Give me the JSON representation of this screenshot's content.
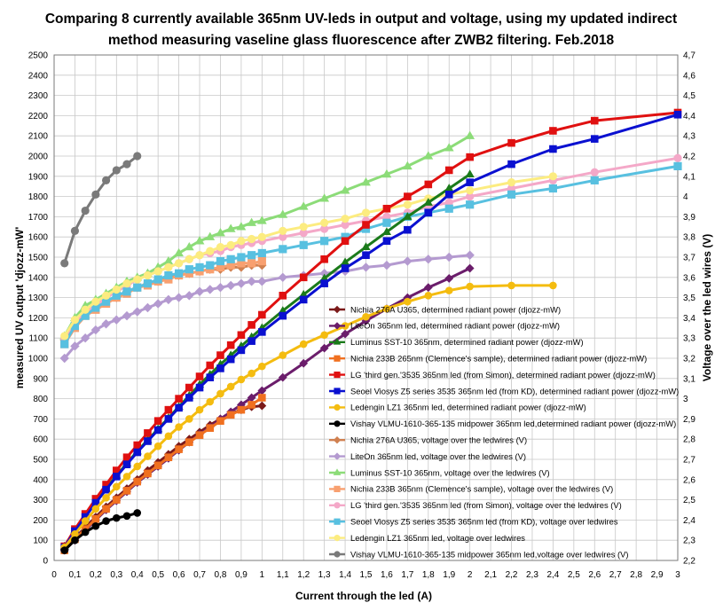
{
  "chart_data": {
    "type": "line",
    "title_lines": [
      "Comparing 8 currently available 365nm UV-leds in output and voltage, using my updated indirect",
      "method measuring vaseline glass fluorescence after ZWB2 filtering. Feb.2018"
    ],
    "xlabel": "Current through the led (A)",
    "ylabel": "measured UV output 'djozz-mW'",
    "y2label": "Voltage over the led wires (V)",
    "xlim": [
      0,
      3
    ],
    "ylim": [
      0,
      2500
    ],
    "y2lim": [
      2.2,
      4.7
    ],
    "x_ticks": [
      "0",
      "0,1",
      "0,2",
      "0,3",
      "0,4",
      "0,5",
      "0,6",
      "0,7",
      "0,8",
      "0,9",
      "1",
      "1,1",
      "1,2",
      "1,3",
      "1,4",
      "1,5",
      "1,6",
      "1,7",
      "1,8",
      "1,9",
      "2",
      "2,1",
      "2,2",
      "2,3",
      "2,4",
      "2,5",
      "2,6",
      "2,7",
      "2,8",
      "2,9",
      "3"
    ],
    "y_ticks": [
      "0",
      "100",
      "200",
      "300",
      "400",
      "500",
      "600",
      "700",
      "800",
      "900",
      "1000",
      "1100",
      "1200",
      "1300",
      "1400",
      "1500",
      "1600",
      "1700",
      "1800",
      "1900",
      "2000",
      "2100",
      "2200",
      "2300",
      "2400",
      "2500"
    ],
    "y2_ticks": [
      "2,2",
      "2,3",
      "2,4",
      "2,5",
      "2,6",
      "2,7",
      "2,8",
      "2,9",
      "3",
      "3,1",
      "3,2",
      "3,3",
      "3,4",
      "3,5",
      "3,6",
      "3,7",
      "3,8",
      "3,9",
      "4",
      "4,1",
      "4,2",
      "4,3",
      "4,4",
      "4,5",
      "4,6",
      "4,7"
    ],
    "grid": true,
    "legend_position": "bottom-right inside plot",
    "series": [
      {
        "name": "Nichia 276A U365,  determined radiant power (djozz-mW)",
        "axis": "left",
        "color": "#7b1a1a",
        "marker": "diamond",
        "x": [
          0.05,
          0.1,
          0.15,
          0.2,
          0.25,
          0.3,
          0.35,
          0.4,
          0.45,
          0.5,
          0.55,
          0.6,
          0.65,
          0.7,
          0.75,
          0.8,
          0.85,
          0.9,
          0.95,
          1.0
        ],
        "y": [
          55,
          110,
          165,
          215,
          265,
          310,
          355,
          400,
          445,
          485,
          525,
          565,
          600,
          635,
          670,
          700,
          725,
          745,
          760,
          765
        ]
      },
      {
        "name": "LiteOn 365nm led, determined radiant power (djozz-mW)",
        "axis": "left",
        "color": "#6b1d6b",
        "marker": "diamond",
        "x": [
          0.05,
          0.1,
          0.15,
          0.2,
          0.25,
          0.3,
          0.35,
          0.4,
          0.45,
          0.5,
          0.55,
          0.6,
          0.65,
          0.7,
          0.75,
          0.8,
          0.85,
          0.9,
          0.95,
          1.0,
          1.1,
          1.2,
          1.3,
          1.4,
          1.5,
          1.6,
          1.7,
          1.8,
          1.9,
          2.0
        ],
        "y": [
          50,
          100,
          150,
          200,
          250,
          295,
          340,
          385,
          425,
          465,
          505,
          545,
          585,
          625,
          660,
          700,
          735,
          770,
          805,
          840,
          905,
          975,
          1050,
          1120,
          1185,
          1245,
          1300,
          1350,
          1395,
          1445
        ]
      },
      {
        "name": "Luminus SST-10 365nm, determined radiant power (djozz-mW)",
        "axis": "left",
        "color": "#1a7a1a",
        "marker": "triangle",
        "x": [
          0.05,
          0.1,
          0.15,
          0.2,
          0.25,
          0.3,
          0.35,
          0.4,
          0.45,
          0.5,
          0.55,
          0.6,
          0.65,
          0.7,
          0.75,
          0.8,
          0.85,
          0.9,
          0.95,
          1.0,
          1.1,
          1.2,
          1.3,
          1.4,
          1.5,
          1.6,
          1.7,
          1.8,
          1.9,
          2.0
        ],
        "y": [
          70,
          150,
          220,
          290,
          355,
          420,
          480,
          540,
          595,
          650,
          705,
          760,
          815,
          870,
          920,
          970,
          1015,
          1060,
          1105,
          1150,
          1235,
          1315,
          1395,
          1475,
          1550,
          1625,
          1700,
          1770,
          1840,
          1910
        ]
      },
      {
        "name": "Nichia 233B 265nm (Clemence's sample), determined radiant power (djozz-mW)",
        "axis": "left",
        "color": "#f07020",
        "marker": "square",
        "x": [
          0.05,
          0.1,
          0.15,
          0.2,
          0.25,
          0.3,
          0.35,
          0.4,
          0.45,
          0.5,
          0.55,
          0.6,
          0.65,
          0.7,
          0.75,
          0.8,
          0.85,
          0.9,
          0.95,
          1.0
        ],
        "y": [
          50,
          105,
          155,
          205,
          255,
          300,
          345,
          390,
          430,
          470,
          510,
          550,
          585,
          620,
          655,
          690,
          720,
          745,
          770,
          805
        ]
      },
      {
        "name": "LG 'third gen.'3535 365nm led (from Simon), determined radiant power (djozz-mW)",
        "axis": "left",
        "color": "#e01010",
        "marker": "square",
        "x": [
          0.05,
          0.1,
          0.15,
          0.2,
          0.25,
          0.3,
          0.35,
          0.4,
          0.45,
          0.5,
          0.55,
          0.6,
          0.65,
          0.7,
          0.75,
          0.8,
          0.85,
          0.9,
          0.95,
          1.0,
          1.1,
          1.2,
          1.3,
          1.4,
          1.5,
          1.6,
          1.7,
          1.8,
          1.9,
          2.0,
          2.2,
          2.4,
          2.6,
          3.0
        ],
        "y": [
          70,
          155,
          230,
          305,
          375,
          445,
          510,
          570,
          630,
          690,
          745,
          800,
          855,
          910,
          965,
          1015,
          1065,
          1115,
          1165,
          1215,
          1310,
          1400,
          1490,
          1580,
          1660,
          1740,
          1800,
          1860,
          1930,
          1995,
          2065,
          2125,
          2175,
          2215
        ]
      },
      {
        "name": "Seoel Viosys Z5 series 3535 365nm led (from KD), determined radiant power (djozz-mW)",
        "axis": "left",
        "color": "#0a10d0",
        "marker": "square",
        "x": [
          0.05,
          0.1,
          0.15,
          0.2,
          0.25,
          0.3,
          0.35,
          0.4,
          0.45,
          0.5,
          0.55,
          0.6,
          0.65,
          0.7,
          0.75,
          0.8,
          0.85,
          0.9,
          0.95,
          1.0,
          1.1,
          1.2,
          1.3,
          1.4,
          1.5,
          1.6,
          1.7,
          1.8,
          1.9,
          2.0,
          2.2,
          2.4,
          2.6,
          3.0
        ],
        "y": [
          65,
          145,
          215,
          285,
          350,
          415,
          475,
          535,
          590,
          645,
          700,
          755,
          805,
          855,
          905,
          950,
          995,
          1040,
          1085,
          1130,
          1210,
          1290,
          1370,
          1445,
          1510,
          1580,
          1635,
          1720,
          1810,
          1870,
          1960,
          2035,
          2085,
          2205
        ]
      },
      {
        "name": "Ledengin LZ1 365nm led, determined radiant power (djozz-mW)",
        "axis": "left",
        "color": "#f4bc10",
        "marker": "circle",
        "x": [
          0.05,
          0.1,
          0.15,
          0.2,
          0.25,
          0.3,
          0.35,
          0.4,
          0.45,
          0.5,
          0.55,
          0.6,
          0.65,
          0.7,
          0.75,
          0.8,
          0.85,
          0.9,
          0.95,
          1.0,
          1.1,
          1.2,
          1.3,
          1.4,
          1.5,
          1.6,
          1.7,
          1.8,
          1.9,
          2.0,
          2.2,
          2.4
        ],
        "y": [
          65,
          130,
          195,
          255,
          310,
          365,
          415,
          465,
          515,
          565,
          615,
          660,
          700,
          745,
          785,
          825,
          860,
          895,
          925,
          960,
          1015,
          1070,
          1115,
          1160,
          1205,
          1245,
          1280,
          1310,
          1335,
          1355,
          1360,
          1360
        ]
      },
      {
        "name": "Vishay VLMU-1610-365-135 midpower 365nm led,determined radiant power (djozz-mW)",
        "axis": "left",
        "color": "#000000",
        "marker": "circle",
        "x": [
          0.05,
          0.1,
          0.15,
          0.2,
          0.25,
          0.3,
          0.35,
          0.4
        ],
        "y": [
          50,
          100,
          140,
          170,
          195,
          210,
          220,
          235
        ]
      },
      {
        "name": "Nichia 276A U365, voltage over the ledwires (V)",
        "axis": "right",
        "color": "#d08050",
        "marker": "diamond",
        "x": [
          0.05,
          0.1,
          0.15,
          0.2,
          0.25,
          0.3,
          0.35,
          0.4,
          0.45,
          0.5,
          0.55,
          0.6,
          0.65,
          0.7,
          0.75,
          0.8,
          0.85,
          0.9,
          0.95,
          1.0
        ],
        "y": [
          3.29,
          3.37,
          3.43,
          3.45,
          3.48,
          3.5,
          3.53,
          3.55,
          3.57,
          3.58,
          3.6,
          3.61,
          3.62,
          3.63,
          3.64,
          3.64,
          3.65,
          3.65,
          3.66,
          3.66
        ]
      },
      {
        "name": "LiteOn 365nm led, voltage over the ledwires (V)",
        "axis": "right",
        "color": "#b49ad0",
        "marker": "diamond",
        "x": [
          0.05,
          0.1,
          0.15,
          0.2,
          0.25,
          0.3,
          0.35,
          0.4,
          0.45,
          0.5,
          0.55,
          0.6,
          0.65,
          0.7,
          0.75,
          0.8,
          0.85,
          0.9,
          0.95,
          1.0,
          1.1,
          1.2,
          1.3,
          1.4,
          1.5,
          1.6,
          1.7,
          1.8,
          1.9,
          2.0
        ],
        "y": [
          3.2,
          3.26,
          3.3,
          3.34,
          3.37,
          3.39,
          3.41,
          3.43,
          3.45,
          3.47,
          3.49,
          3.5,
          3.51,
          3.53,
          3.54,
          3.55,
          3.56,
          3.57,
          3.58,
          3.58,
          3.6,
          3.61,
          3.62,
          3.63,
          3.65,
          3.66,
          3.68,
          3.69,
          3.7,
          3.71
        ]
      },
      {
        "name": "Luminus SST-10 365nm, voltage over the ledwires (V)",
        "axis": "right",
        "color": "#8cdc78",
        "marker": "triangle",
        "x": [
          0.05,
          0.1,
          0.15,
          0.2,
          0.25,
          0.3,
          0.35,
          0.4,
          0.45,
          0.5,
          0.55,
          0.6,
          0.65,
          0.7,
          0.75,
          0.8,
          0.85,
          0.9,
          0.95,
          1.0,
          1.1,
          1.2,
          1.3,
          1.4,
          1.5,
          1.6,
          1.7,
          1.8,
          1.9,
          2.0
        ],
        "y": [
          3.31,
          3.4,
          3.46,
          3.49,
          3.52,
          3.55,
          3.58,
          3.6,
          3.62,
          3.65,
          3.68,
          3.72,
          3.75,
          3.78,
          3.8,
          3.82,
          3.84,
          3.85,
          3.87,
          3.88,
          3.91,
          3.95,
          3.99,
          4.03,
          4.07,
          4.11,
          4.15,
          4.2,
          4.24,
          4.3
        ]
      },
      {
        "name": "Nichia 233B 365nm (Clemence's sample), voltage over the ledwires (V)",
        "axis": "right",
        "color": "#f8a070",
        "marker": "square",
        "x": [
          0.05,
          0.1,
          0.15,
          0.2,
          0.25,
          0.3,
          0.35,
          0.4,
          0.45,
          0.5,
          0.55,
          0.6,
          0.65,
          0.7,
          0.75,
          0.8,
          0.85,
          0.9,
          0.95,
          1.0
        ],
        "y": [
          3.27,
          3.35,
          3.41,
          3.44,
          3.47,
          3.5,
          3.52,
          3.55,
          3.56,
          3.58,
          3.59,
          3.61,
          3.62,
          3.63,
          3.64,
          3.65,
          3.66,
          3.67,
          3.67,
          3.68
        ]
      },
      {
        "name": "LG 'third gen.'3535 365nm led (from Simon), voltage over the ledwires (V)",
        "axis": "right",
        "color": "#f4a8c8",
        "marker": "circle",
        "x": [
          0.05,
          0.1,
          0.15,
          0.2,
          0.25,
          0.3,
          0.35,
          0.4,
          0.45,
          0.5,
          0.55,
          0.6,
          0.65,
          0.7,
          0.75,
          0.8,
          0.85,
          0.9,
          0.95,
          1.0,
          1.1,
          1.2,
          1.3,
          1.4,
          1.5,
          1.6,
          1.7,
          1.8,
          1.9,
          2.0,
          2.2,
          2.4,
          2.6,
          3.0
        ],
        "y": [
          3.3,
          3.38,
          3.43,
          3.46,
          3.5,
          3.53,
          3.56,
          3.59,
          3.61,
          3.63,
          3.65,
          3.67,
          3.69,
          3.71,
          3.72,
          3.73,
          3.75,
          3.76,
          3.77,
          3.78,
          3.8,
          3.82,
          3.84,
          3.86,
          3.88,
          3.9,
          3.92,
          3.95,
          3.97,
          4.0,
          4.04,
          4.08,
          4.12,
          4.19
        ]
      },
      {
        "name": "Seoel Viosys Z5 series 3535 365nm led (from KD), voltage over ledwires",
        "axis": "right",
        "color": "#58c0e0",
        "marker": "square",
        "x": [
          0.05,
          0.1,
          0.15,
          0.2,
          0.25,
          0.3,
          0.35,
          0.4,
          0.45,
          0.5,
          0.55,
          0.6,
          0.65,
          0.7,
          0.75,
          0.8,
          0.85,
          0.9,
          0.95,
          1.0,
          1.1,
          1.2,
          1.3,
          1.4,
          1.5,
          1.6,
          1.7,
          1.8,
          1.9,
          2.0,
          2.2,
          2.4,
          2.6,
          3.0
        ],
        "y": [
          3.27,
          3.36,
          3.41,
          3.45,
          3.48,
          3.51,
          3.53,
          3.55,
          3.57,
          3.59,
          3.61,
          3.62,
          3.64,
          3.65,
          3.66,
          3.68,
          3.69,
          3.7,
          3.71,
          3.72,
          3.74,
          3.76,
          3.78,
          3.8,
          3.84,
          3.87,
          3.9,
          3.92,
          3.94,
          3.96,
          4.01,
          4.04,
          4.08,
          4.15
        ]
      },
      {
        "name": "Ledengin LZ1 365nm led, voltage over ledwires",
        "axis": "right",
        "color": "#fcec80",
        "marker": "circle",
        "x": [
          0.05,
          0.1,
          0.15,
          0.2,
          0.25,
          0.3,
          0.35,
          0.4,
          0.45,
          0.5,
          0.55,
          0.6,
          0.65,
          0.7,
          0.75,
          0.8,
          0.85,
          0.9,
          0.95,
          1.0,
          1.1,
          1.2,
          1.3,
          1.4,
          1.5,
          1.6,
          1.7,
          1.8,
          1.9,
          2.0,
          2.2,
          2.4
        ],
        "y": [
          3.31,
          3.39,
          3.44,
          3.48,
          3.51,
          3.54,
          3.57,
          3.59,
          3.61,
          3.63,
          3.65,
          3.67,
          3.69,
          3.71,
          3.73,
          3.75,
          3.76,
          3.78,
          3.79,
          3.8,
          3.83,
          3.85,
          3.87,
          3.89,
          3.92,
          3.94,
          3.96,
          3.99,
          4.01,
          4.03,
          4.07,
          4.1
        ]
      },
      {
        "name": "Vishay VLMU-1610-365-135 midpower 365nm led,voltage over ledwires (V)",
        "axis": "right",
        "color": "#7a7a7a",
        "marker": "circle",
        "x": [
          0.05,
          0.1,
          0.15,
          0.2,
          0.25,
          0.3,
          0.35,
          0.4
        ],
        "y": [
          3.67,
          3.83,
          3.93,
          4.01,
          4.08,
          4.13,
          4.16,
          4.2
        ]
      }
    ]
  }
}
